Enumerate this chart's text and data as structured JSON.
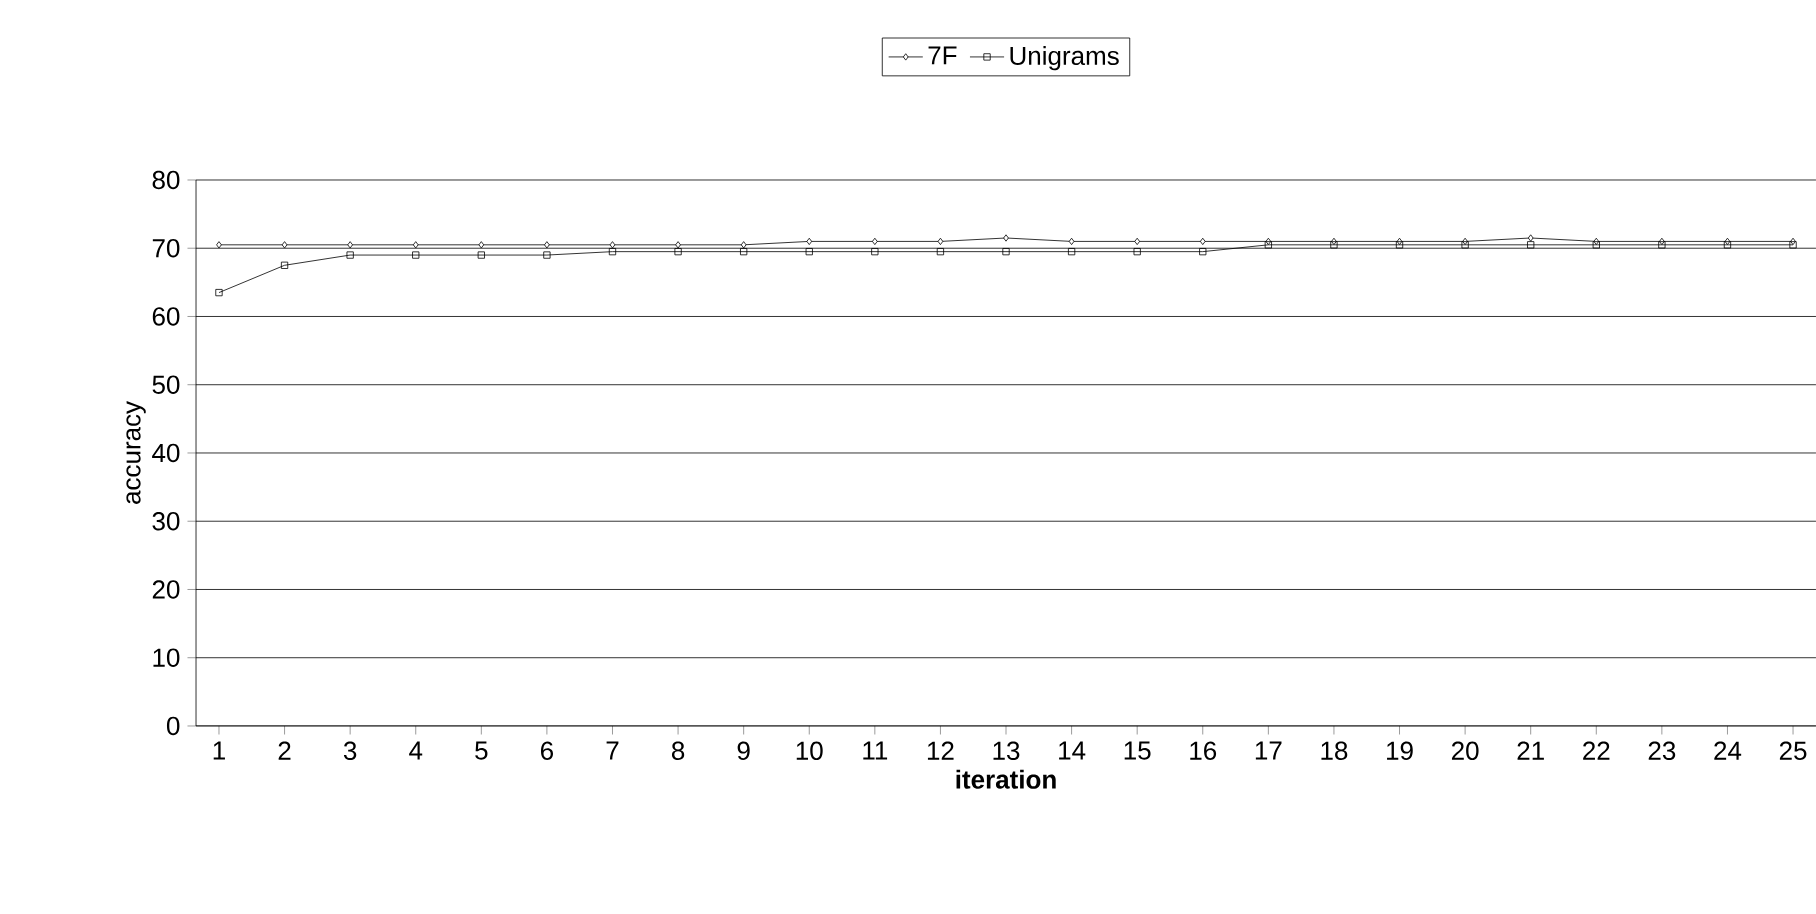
{
  "chart_data": {
    "type": "line",
    "xlabel": "iteration",
    "ylabel": "accuracy",
    "categories": [
      "1",
      "2",
      "3",
      "4",
      "5",
      "6",
      "7",
      "8",
      "9",
      "10",
      "11",
      "12",
      "13",
      "14",
      "15",
      "16",
      "17",
      "18",
      "19",
      "20",
      "21",
      "22",
      "23",
      "24",
      "25"
    ],
    "series": [
      {
        "name": "7F",
        "color": "#000000",
        "marker": "diamond",
        "values": [
          70.5,
          70.5,
          70.5,
          70.5,
          70.5,
          70.5,
          70.5,
          70.5,
          70.5,
          71,
          71,
          71,
          71.5,
          71,
          71,
          71,
          71,
          71,
          71,
          71,
          71.5,
          71,
          71,
          71,
          71
        ]
      },
      {
        "name": "Unigrams",
        "color": "#000000",
        "marker": "square",
        "values": [
          63.5,
          67.5,
          69,
          69,
          69,
          69,
          69.5,
          69.5,
          69.5,
          69.5,
          69.5,
          69.5,
          69.5,
          69.5,
          69.5,
          69.5,
          70.5,
          70.5,
          70.5,
          70.5,
          70.5,
          70.5,
          70.5,
          70.5,
          70.5
        ]
      }
    ],
    "ylim": [
      0,
      80
    ],
    "yticks": [
      0,
      10,
      20,
      30,
      40,
      50,
      60,
      70,
      80
    ],
    "grid": "y",
    "legend": "top",
    "line_style": "solid"
  }
}
